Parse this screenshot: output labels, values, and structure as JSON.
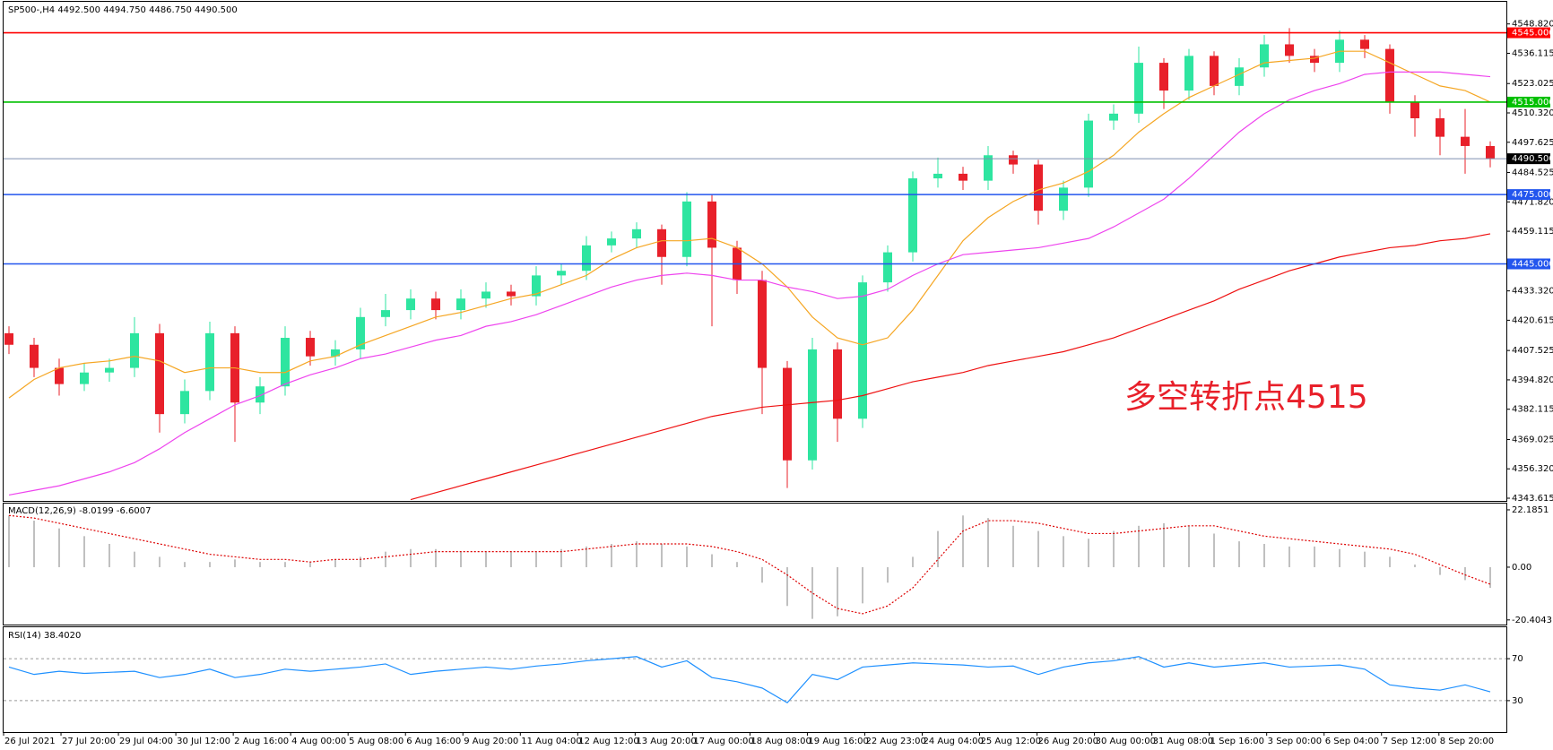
{
  "chart_data": {
    "type": "candlestick",
    "title": "SP500-,H4  4492.500 4494.750 4486.750 4490.500",
    "annotation": "多空转折点4515",
    "up_color": "#2ee5a0",
    "down_color": "#e8202a",
    "x_labels": [
      "26 Jul 2021",
      "27 Jul 20:00",
      "29 Jul 04:00",
      "30 Jul 12:00",
      "2 Aug 16:00",
      "4 Aug 00:00",
      "5 Aug 08:00",
      "6 Aug 16:00",
      "9 Aug 20:00",
      "11 Aug 04:00",
      "12 Aug 12:00",
      "13 Aug 20:00",
      "17 Aug 00:00",
      "18 Aug 08:00",
      "19 Aug 16:00",
      "22 Aug 23:00",
      "24 Aug 04:00",
      "25 Aug 12:00",
      "26 Aug 20:00",
      "30 Aug 00:00",
      "31 Aug 08:00",
      "1 Sep 16:00",
      "3 Sep 00:00",
      "6 Sep 04:00",
      "7 Sep 12:00",
      "8 Sep 20:00"
    ],
    "open": [
      4415,
      4410,
      4400,
      4393,
      4398,
      4400,
      4415,
      4380,
      4390,
      4415,
      4385,
      4392,
      4413,
      4405,
      4408,
      4422,
      4425,
      4430,
      4425,
      4430,
      4433,
      4431,
      4440,
      4442,
      4453,
      4456,
      4460,
      4448,
      4472,
      4452,
      4438,
      4400,
      4360,
      4408,
      4378,
      4437,
      4450,
      4482,
      4484,
      4481,
      4492,
      4488,
      4468,
      4478,
      4507,
      4510,
      4532,
      4520,
      4535,
      4522,
      4530,
      4540,
      4535,
      4532,
      4542,
      4538,
      4515,
      4508,
      4500,
      4496
    ],
    "high": [
      4418,
      4413,
      4404,
      4402,
      4404,
      4422,
      4419,
      4395,
      4420,
      4418,
      4396,
      4418,
      4416,
      4412,
      4426,
      4432,
      4434,
      4433,
      4434,
      4437,
      4436,
      4444,
      4445,
      4457,
      4459,
      4463,
      4462,
      4476,
      4475,
      4455,
      4442,
      4403,
      4413,
      4411,
      4440,
      4453,
      4485,
      4491,
      4487,
      4496,
      4494,
      4490,
      4481,
      4510,
      4514,
      4539,
      4534,
      4538,
      4537,
      4534,
      4544,
      4547,
      4538,
      4546,
      4544,
      4540,
      4518,
      4512,
      4512,
      4498
    ],
    "low": [
      4406,
      4396,
      4388,
      4390,
      4394,
      4396,
      4372,
      4376,
      4386,
      4368,
      4380,
      4388,
      4401,
      4401,
      4404,
      4418,
      4421,
      4421,
      4421,
      4426,
      4427,
      4427,
      4436,
      4438,
      4450,
      4452,
      4436,
      4444,
      4418,
      4432,
      4380,
      4348,
      4356,
      4368,
      4374,
      4433,
      4446,
      4478,
      4477,
      4477,
      4484,
      4462,
      4464,
      4474,
      4503,
      4506,
      4512,
      4516,
      4518,
      4518,
      4526,
      4532,
      4528,
      4528,
      4534,
      4510,
      4500,
      4492,
      4484,
      4486.75
    ],
    "close": [
      4410,
      4400,
      4393,
      4398,
      4400,
      4415,
      4380,
      4390,
      4415,
      4385,
      4392,
      4413,
      4405,
      4408,
      4422,
      4425,
      4430,
      4425,
      4430,
      4433,
      4431,
      4440,
      4442,
      4453,
      4456,
      4460,
      4448,
      4472,
      4452,
      4438,
      4400,
      4360,
      4408,
      4378,
      4437,
      4450,
      4482,
      4484,
      4481,
      4492,
      4488,
      4468,
      4478,
      4507,
      4510,
      4532,
      4520,
      4535,
      4522,
      4530,
      4540,
      4535,
      4532,
      4542,
      4538,
      4515,
      4508,
      4500,
      4496,
      4490.5
    ],
    "lines": [
      {
        "color": "#f5a623",
        "values": [
          4387,
          4395,
          4400,
          4402,
          4403,
          4405,
          4403,
          4398,
          4400,
          4400,
          4398,
          4398,
          4403,
          4405,
          4410,
          4414,
          4418,
          4422,
          4424,
          4427,
          4430,
          4432,
          4436,
          4440,
          4447,
          4452,
          4455,
          4455,
          4456,
          4452,
          4445,
          4435,
          4422,
          4413,
          4410,
          4413,
          4425,
          4440,
          4455,
          4465,
          4472,
          4477,
          4480,
          4485,
          4492,
          4502,
          4510,
          4517,
          4522,
          4527,
          4532,
          4533,
          4534,
          4537,
          4537,
          4532,
          4527,
          4522,
          4520,
          4515
        ]
      },
      {
        "color": "#ee44ee",
        "values": [
          4345,
          4347,
          4349,
          4352,
          4355,
          4359,
          4365,
          4372,
          4378,
          4384,
          4388,
          4393,
          4397,
          4400,
          4404,
          4406,
          4409,
          4412,
          4414,
          4418,
          4420,
          4423,
          4427,
          4431,
          4435,
          4438,
          4440,
          4441,
          4440,
          4438,
          4438,
          4435,
          4433,
          4430,
          4431,
          4434,
          4440,
          4445,
          4449,
          4450,
          4451,
          4452,
          4454,
          4456,
          4461,
          4467,
          4473,
          4482,
          4492,
          4502,
          4510,
          4516,
          4520,
          4523,
          4527,
          4528,
          4528,
          4528,
          4527,
          4526
        ]
      },
      {
        "color": "#ee1111",
        "values": [
          null,
          null,
          null,
          null,
          null,
          null,
          null,
          null,
          null,
          null,
          null,
          null,
          null,
          null,
          null,
          null,
          4343,
          4346,
          4349,
          4352,
          4355,
          4358,
          4361,
          4364,
          4367,
          4370,
          4373,
          4376,
          4379,
          4381,
          4383,
          4384,
          4385,
          4386,
          4388,
          4391,
          4394,
          4396,
          4398,
          4401,
          4403,
          4405,
          4407,
          4410,
          4413,
          4417,
          4421,
          4425,
          4429,
          4434,
          4438,
          4442,
          4445,
          4448,
          4450,
          4452,
          4453,
          4455,
          4456,
          4458
        ]
      }
    ],
    "levels": [
      {
        "value": 4545,
        "label": "4545.000",
        "color": "#ff0000"
      },
      {
        "value": 4515,
        "label": "4515.000",
        "color": "#00c000"
      },
      {
        "value": 4490.5,
        "label": "4490.500",
        "color": "#000000"
      },
      {
        "value": 4475,
        "label": "4475.000",
        "color": "#2255ee"
      },
      {
        "value": 4445,
        "label": "4445.000",
        "color": "#2255ee"
      }
    ],
    "ylim": [
      4342.45,
      4558.4
    ],
    "yticks": [
      4343.615,
      {
        "value": 4356.32,
        "label": "4356.320"
      },
      4369.025,
      4382.115,
      {
        "value": 4394.82,
        "label": "4394.820"
      },
      4407.525,
      4420.615,
      {
        "value": 4433.32,
        "label": "4433.320"
      },
      4459.115,
      {
        "value": 4471.82,
        "label": "4471.820"
      },
      4484.525,
      4497.625,
      {
        "value": 4510.32,
        "label": "4510.320"
      },
      4523.025,
      4536.115,
      {
        "value": 4548.82,
        "label": "4548.820"
      }
    ],
    "macd": {
      "title": "MACD(12,26,9) -8.0199 -6.6007",
      "hist_color": "#c0c0c0",
      "signal_color": "#dd0000",
      "hist": [
        20,
        18,
        15,
        12,
        9,
        6,
        4,
        2,
        2,
        3,
        2,
        2,
        2,
        3,
        4,
        6,
        7,
        7,
        6,
        6,
        6,
        6,
        7,
        8,
        9,
        10,
        9,
        8,
        5,
        2,
        -6,
        -15,
        -20,
        -19,
        -14,
        -6,
        4,
        14,
        20,
        19,
        16,
        14,
        12,
        11,
        14,
        16,
        17,
        16,
        13,
        10,
        9,
        8,
        8,
        7,
        6,
        4,
        1,
        -3,
        -5,
        -8.0199
      ],
      "signal": [
        20,
        19,
        17,
        15,
        13,
        11,
        9,
        7,
        5,
        4,
        3,
        3,
        2,
        3,
        3,
        4,
        5,
        6,
        6,
        6,
        6,
        6,
        6,
        7,
        8,
        9,
        9,
        9,
        8,
        6,
        3,
        -3,
        -10,
        -16,
        -18,
        -15,
        -8,
        3,
        14,
        18,
        18,
        17,
        15,
        13,
        13,
        14,
        15,
        16,
        16,
        14,
        12,
        11,
        10,
        9,
        8,
        7,
        5,
        1,
        -3,
        -6.6007
      ],
      "ylim": [
        -22.2,
        24.6
      ],
      "yticks": [
        22.1851,
        {
          "value": 0,
          "label": "0.00"
        },
        -20.4043
      ]
    },
    "rsi": {
      "title": "RSI(14) 38.4020",
      "color": "#1e90ff",
      "values": [
        62,
        55,
        58,
        56,
        57,
        58,
        52,
        55,
        60,
        52,
        55,
        60,
        58,
        60,
        62,
        65,
        55,
        58,
        60,
        62,
        60,
        63,
        65,
        68,
        70,
        72,
        62,
        68,
        52,
        48,
        42,
        28,
        55,
        50,
        62,
        64,
        66,
        65,
        64,
        62,
        63,
        55,
        62,
        66,
        68,
        72,
        62,
        66,
        62,
        64,
        66,
        62,
        63,
        64,
        60,
        45,
        42,
        40,
        45,
        38.402
      ],
      "ylim": [
        0,
        100
      ],
      "yticks": [
        70,
        30
      ]
    }
  }
}
